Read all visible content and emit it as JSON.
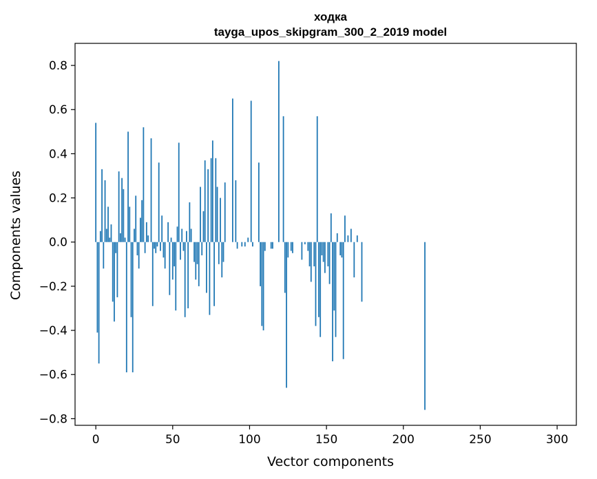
{
  "chart_data": {
    "type": "bar",
    "title": "ходка",
    "subtitle": "tayga_upos_skipgram_300_2_2019 model",
    "xlabel": "Vector components",
    "ylabel": "Components values",
    "xlim": [
      -13.5,
      312.5
    ],
    "ylim": [
      -0.83,
      0.9
    ],
    "xticks": [
      0,
      50,
      100,
      150,
      200,
      250,
      300
    ],
    "yticks": [
      -0.8,
      -0.6,
      -0.4,
      -0.2,
      0.0,
      0.2,
      0.4,
      0.6,
      0.8
    ],
    "ytick_labels": [
      "−0.8",
      "−0.6",
      "−0.4",
      "−0.2",
      "0.0",
      "0.2",
      "0.4",
      "0.6",
      "0.8"
    ],
    "xtick_labels": [
      "0",
      "50",
      "100",
      "150",
      "200",
      "250",
      "300"
    ],
    "bar_color": "#1f77b4",
    "grid": false,
    "values": [
      0.54,
      -0.41,
      -0.55,
      0.05,
      0.33,
      -0.12,
      0.28,
      0.06,
      0.16,
      0.02,
      0.08,
      -0.27,
      -0.36,
      -0.05,
      -0.25,
      0.32,
      0.04,
      0.29,
      0.24,
      0.02,
      -0.59,
      0.5,
      0.16,
      -0.34,
      -0.59,
      0.06,
      0.21,
      -0.06,
      -0.12,
      0.11,
      0.19,
      0.52,
      -0.05,
      0.09,
      0.03,
      0.0,
      0.47,
      -0.29,
      -0.03,
      -0.05,
      -0.02,
      0.36,
      -0.04,
      0.12,
      -0.07,
      -0.12,
      0.0,
      0.09,
      -0.24,
      0.02,
      -0.17,
      -0.11,
      -0.31,
      0.07,
      0.45,
      -0.08,
      0.06,
      -0.04,
      -0.34,
      0.05,
      -0.3,
      0.18,
      0.06,
      0.0,
      -0.09,
      -0.17,
      -0.1,
      -0.2,
      0.25,
      -0.06,
      0.14,
      0.37,
      -0.23,
      0.33,
      -0.33,
      0.38,
      0.46,
      -0.29,
      0.38,
      0.25,
      -0.1,
      0.2,
      -0.16,
      -0.09,
      0.27,
      0.0,
      0.0,
      0.0,
      0.0,
      0.65,
      0.0,
      0.28,
      -0.03,
      0.0,
      0.0,
      -0.02,
      0.0,
      -0.02,
      0.0,
      0.02,
      0.0,
      0.64,
      -0.02,
      0.0,
      0.0,
      0.0,
      0.36,
      -0.2,
      -0.38,
      -0.4,
      -0.04,
      0.0,
      0.0,
      0.0,
      -0.03,
      -0.03,
      0.0,
      0.0,
      0.0,
      0.82,
      0.0,
      0.0,
      0.57,
      -0.23,
      -0.66,
      -0.07,
      0.0,
      -0.04,
      -0.05,
      0.0,
      0.0,
      0.0,
      0.0,
      0.0,
      -0.08,
      0.0,
      -0.01,
      0.0,
      -0.04,
      -0.11,
      -0.18,
      0.0,
      -0.11,
      -0.38,
      0.57,
      -0.34,
      -0.43,
      -0.06,
      -0.09,
      -0.14,
      0.0,
      -0.11,
      -0.19,
      0.13,
      -0.54,
      -0.31,
      -0.43,
      0.04,
      0.0,
      -0.06,
      -0.07,
      -0.53,
      0.12,
      0.0,
      0.03,
      0.0,
      0.06,
      0.0,
      -0.16,
      0.0,
      0.03,
      0.0,
      0.0,
      -0.27,
      0.0,
      0.0,
      0.0,
      0.0,
      0.0,
      0.0,
      0.0,
      0.0,
      0.0,
      0.0,
      0.0,
      0.0,
      0.0,
      0.0,
      0.0,
      0.0,
      0.0,
      0.0,
      0.0,
      0.0,
      0.0,
      0.0,
      0.0,
      0.0,
      0.0,
      0.0,
      0.0,
      0.0,
      0.0,
      0.0,
      0.0,
      0.0,
      0.0,
      0.0,
      0.0,
      0.0,
      0.0,
      0.0,
      0.0,
      0.0,
      -0.76,
      0.0,
      0.0,
      0.0,
      0.0,
      0.0,
      0.0,
      0.0,
      0.0,
      0.0,
      0.0,
      0.0,
      0.0,
      0.0,
      0.0,
      0.0,
      0.0,
      0.0,
      0.0,
      0.0,
      0.0,
      0.0,
      0.0,
      0.0,
      0.0,
      0.0,
      0.0,
      0.0,
      0.0,
      0.0,
      0.0,
      0.0,
      0.0,
      0.0,
      0.0,
      0.0,
      0.0,
      0.0,
      0.0,
      0.0,
      0.0,
      0.0,
      0.0,
      0.0,
      0.0,
      0.0,
      0.0,
      0.0,
      0.0,
      0.0,
      0.0,
      0.0,
      0.0,
      0.0,
      0.0,
      0.0,
      0.0,
      0.0,
      0.0,
      0.0,
      0.0,
      0.0,
      0.0,
      0.0,
      0.0,
      0.0,
      0.0,
      0.0,
      0.0,
      0.0,
      0.0,
      0.0,
      0.0,
      0.0,
      0.0,
      0.0,
      0.0,
      0.0,
      0.0,
      0.0,
      0.0,
      0.0,
      0.0,
      0.0,
      0.0,
      0.0,
      0.0,
      0.0,
      0.0,
      0.0,
      0.0,
      0.0,
      0.0,
      0.0,
      0.0
    ]
  }
}
